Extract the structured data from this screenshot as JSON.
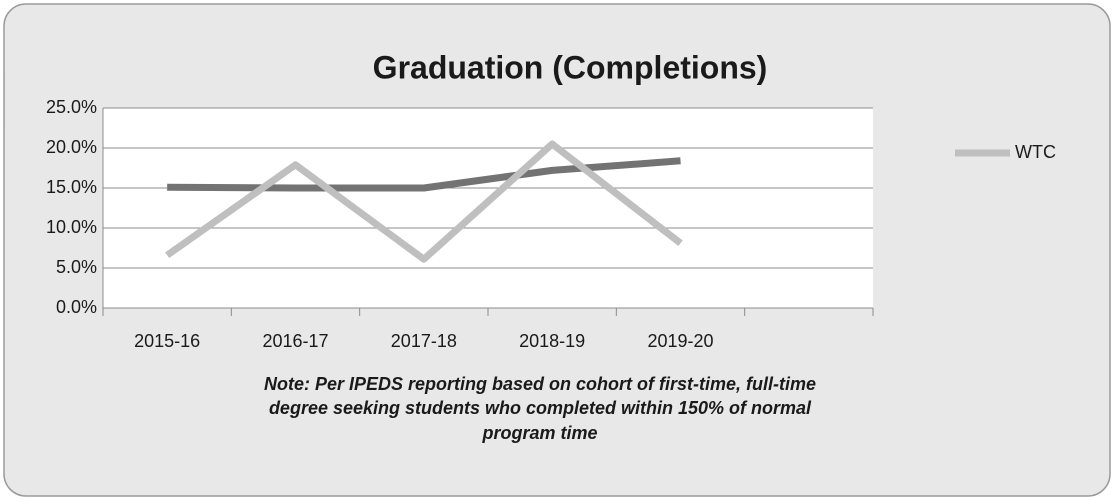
{
  "chart_data": {
    "type": "line",
    "title": "Graduation (Completions)",
    "categories": [
      "2015-16",
      "2016-17",
      "2017-18",
      "2018-19",
      "2019-20",
      null
    ],
    "series": [
      {
        "name": "WTC",
        "color": "#bfbfbf",
        "values": [
          6.6,
          17.9,
          6.1,
          20.5,
          8.1,
          null
        ]
      },
      {
        "color": "#737373",
        "values": [
          15.1,
          15.0,
          15.0,
          17.2,
          18.4,
          null
        ]
      }
    ],
    "ylim": [
      0,
      25
    ],
    "yticks": [
      {
        "value": 0,
        "label": "0.0%"
      },
      {
        "value": 5,
        "label": "5.0%"
      },
      {
        "value": 10,
        "label": "10.0%"
      },
      {
        "value": 15,
        "label": "15.0%"
      },
      {
        "value": 20,
        "label": "20.0%"
      },
      {
        "value": 25,
        "label": "25.0%"
      }
    ],
    "grid": true,
    "legend": "right",
    "note": [
      "Note: Per IPEDS reporting based on cohort of first-time, full-time",
      "degree seeking students who completed within 150% of normal",
      "program time"
    ]
  }
}
